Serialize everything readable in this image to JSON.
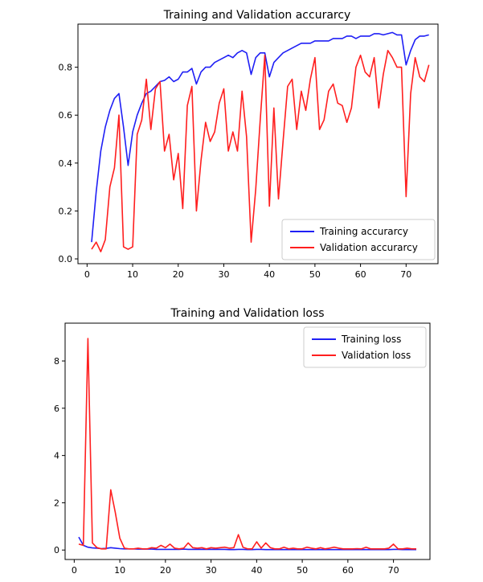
{
  "colors": {
    "training": "#1f1ff5",
    "validation": "#ff1f1f",
    "axis": "#000000",
    "legend_border": "#cccccc"
  },
  "chart_data": [
    {
      "type": "line",
      "title": "Training and Validation accurarcy",
      "xlabel": "",
      "ylabel": "",
      "xlim": [
        -2,
        77
      ],
      "ylim": [
        -0.02,
        0.98
      ],
      "xticks": [
        0,
        10,
        20,
        30,
        40,
        50,
        60,
        70
      ],
      "yticks": [
        0.0,
        0.2,
        0.4,
        0.6,
        0.8
      ],
      "ytick_labels": [
        "0.0",
        "0.2",
        "0.4",
        "0.6",
        "0.8"
      ],
      "legend": "lower right",
      "series": [
        {
          "name": "Training accurarcy",
          "color": "#1f1ff5",
          "x": [
            1,
            2,
            3,
            4,
            5,
            6,
            7,
            8,
            9,
            10,
            11,
            12,
            13,
            14,
            15,
            16,
            17,
            18,
            19,
            20,
            21,
            22,
            23,
            24,
            25,
            26,
            27,
            28,
            29,
            30,
            31,
            32,
            33,
            34,
            35,
            36,
            37,
            38,
            39,
            40,
            41,
            42,
            43,
            44,
            45,
            46,
            47,
            48,
            49,
            50,
            51,
            52,
            53,
            54,
            55,
            56,
            57,
            58,
            59,
            60,
            61,
            62,
            63,
            64,
            65,
            66,
            67,
            68,
            69,
            70,
            71,
            72,
            73,
            74,
            75
          ],
          "values": [
            0.07,
            0.28,
            0.45,
            0.55,
            0.62,
            0.67,
            0.69,
            0.55,
            0.39,
            0.53,
            0.6,
            0.65,
            0.69,
            0.7,
            0.72,
            0.74,
            0.745,
            0.76,
            0.74,
            0.75,
            0.78,
            0.78,
            0.795,
            0.73,
            0.78,
            0.8,
            0.8,
            0.82,
            0.83,
            0.84,
            0.85,
            0.84,
            0.86,
            0.87,
            0.86,
            0.77,
            0.84,
            0.86,
            0.86,
            0.76,
            0.82,
            0.84,
            0.86,
            0.87,
            0.88,
            0.89,
            0.9,
            0.9,
            0.9,
            0.91,
            0.91,
            0.91,
            0.91,
            0.92,
            0.92,
            0.92,
            0.93,
            0.93,
            0.92,
            0.93,
            0.93,
            0.93,
            0.94,
            0.94,
            0.935,
            0.94,
            0.945,
            0.935,
            0.935,
            0.81,
            0.87,
            0.915,
            0.93,
            0.93,
            0.935
          ]
        },
        {
          "name": "Validation accurarcy",
          "color": "#ff1f1f",
          "x": [
            1,
            2,
            3,
            4,
            5,
            6,
            7,
            8,
            9,
            10,
            11,
            12,
            13,
            14,
            15,
            16,
            17,
            18,
            19,
            20,
            21,
            22,
            23,
            24,
            25,
            26,
            27,
            28,
            29,
            30,
            31,
            32,
            33,
            34,
            35,
            36,
            37,
            38,
            39,
            40,
            41,
            42,
            43,
            44,
            45,
            46,
            47,
            48,
            49,
            50,
            51,
            52,
            53,
            54,
            55,
            56,
            57,
            58,
            59,
            60,
            61,
            62,
            63,
            64,
            65,
            66,
            67,
            68,
            69,
            70,
            71,
            72,
            73,
            74,
            75
          ],
          "values": [
            0.04,
            0.07,
            0.03,
            0.08,
            0.3,
            0.38,
            0.6,
            0.05,
            0.04,
            0.05,
            0.52,
            0.58,
            0.75,
            0.54,
            0.71,
            0.74,
            0.45,
            0.52,
            0.33,
            0.44,
            0.21,
            0.64,
            0.72,
            0.2,
            0.41,
            0.57,
            0.49,
            0.53,
            0.65,
            0.71,
            0.45,
            0.53,
            0.45,
            0.7,
            0.51,
            0.07,
            0.29,
            0.58,
            0.85,
            0.22,
            0.63,
            0.25,
            0.49,
            0.72,
            0.75,
            0.54,
            0.7,
            0.62,
            0.75,
            0.84,
            0.54,
            0.58,
            0.7,
            0.73,
            0.65,
            0.64,
            0.57,
            0.63,
            0.8,
            0.85,
            0.78,
            0.76,
            0.84,
            0.63,
            0.77,
            0.87,
            0.84,
            0.8,
            0.8,
            0.26,
            0.69,
            0.84,
            0.76,
            0.74,
            0.81
          ]
        }
      ]
    },
    {
      "type": "line",
      "title": "Training and Validation loss",
      "xlabel": "",
      "ylabel": "",
      "xlim": [
        -2,
        78
      ],
      "ylim": [
        -0.4,
        9.6
      ],
      "xticks": [
        0,
        10,
        20,
        30,
        40,
        50,
        60,
        70
      ],
      "yticks": [
        0,
        2,
        4,
        6,
        8
      ],
      "ytick_labels": [
        "0",
        "2",
        "4",
        "6",
        "8"
      ],
      "legend": "upper right",
      "series": [
        {
          "name": "Training loss",
          "color": "#1f1ff5",
          "x": [
            1,
            2,
            3,
            4,
            5,
            6,
            7,
            8,
            9,
            10,
            11,
            12,
            13,
            14,
            15,
            16,
            17,
            18,
            19,
            20,
            21,
            22,
            23,
            24,
            25,
            26,
            27,
            28,
            29,
            30,
            31,
            32,
            33,
            34,
            35,
            36,
            37,
            38,
            39,
            40,
            41,
            42,
            43,
            44,
            45,
            46,
            47,
            48,
            49,
            50,
            51,
            52,
            53,
            54,
            55,
            56,
            57,
            58,
            59,
            60,
            61,
            62,
            63,
            64,
            65,
            66,
            67,
            68,
            69,
            70,
            71,
            72,
            73,
            74,
            75
          ],
          "values": [
            0.55,
            0.2,
            0.12,
            0.09,
            0.08,
            0.06,
            0.07,
            0.1,
            0.08,
            0.06,
            0.05,
            0.05,
            0.05,
            0.04,
            0.04,
            0.04,
            0.04,
            0.03,
            0.03,
            0.03,
            0.03,
            0.03,
            0.03,
            0.04,
            0.03,
            0.03,
            0.03,
            0.03,
            0.03,
            0.03,
            0.03,
            0.03,
            0.03,
            0.02,
            0.02,
            0.03,
            0.03,
            0.02,
            0.02,
            0.03,
            0.03,
            0.02,
            0.02,
            0.02,
            0.02,
            0.02,
            0.02,
            0.02,
            0.02,
            0.02,
            0.02,
            0.02,
            0.02,
            0.02,
            0.02,
            0.02,
            0.02,
            0.02,
            0.02,
            0.02,
            0.02,
            0.02,
            0.02,
            0.02,
            0.02,
            0.02,
            0.02,
            0.02,
            0.02,
            0.03,
            0.03,
            0.02,
            0.02,
            0.02,
            0.02
          ]
        },
        {
          "name": "Validation loss",
          "color": "#ff1f1f",
          "x": [
            1,
            2,
            3,
            4,
            5,
            6,
            7,
            8,
            9,
            10,
            11,
            12,
            13,
            14,
            15,
            16,
            17,
            18,
            19,
            20,
            21,
            22,
            23,
            24,
            25,
            26,
            27,
            28,
            29,
            30,
            31,
            32,
            33,
            34,
            35,
            36,
            37,
            38,
            39,
            40,
            41,
            42,
            43,
            44,
            45,
            46,
            47,
            48,
            49,
            50,
            51,
            52,
            53,
            54,
            55,
            56,
            57,
            58,
            59,
            60,
            61,
            62,
            63,
            64,
            65,
            66,
            67,
            68,
            69,
            70,
            71,
            72,
            73,
            74,
            75
          ],
          "values": [
            0.25,
            0.2,
            8.95,
            0.3,
            0.1,
            0.05,
            0.05,
            2.55,
            1.6,
            0.5,
            0.08,
            0.05,
            0.05,
            0.08,
            0.05,
            0.05,
            0.1,
            0.08,
            0.2,
            0.1,
            0.25,
            0.08,
            0.05,
            0.08,
            0.3,
            0.1,
            0.08,
            0.1,
            0.05,
            0.1,
            0.08,
            0.1,
            0.12,
            0.08,
            0.1,
            0.65,
            0.12,
            0.05,
            0.05,
            0.35,
            0.08,
            0.3,
            0.1,
            0.05,
            0.05,
            0.12,
            0.05,
            0.08,
            0.05,
            0.05,
            0.12,
            0.08,
            0.05,
            0.1,
            0.05,
            0.08,
            0.12,
            0.08,
            0.05,
            0.05,
            0.05,
            0.06,
            0.05,
            0.12,
            0.05,
            0.05,
            0.05,
            0.05,
            0.08,
            0.25,
            0.05,
            0.05,
            0.08,
            0.05,
            0.05
          ]
        }
      ]
    }
  ]
}
